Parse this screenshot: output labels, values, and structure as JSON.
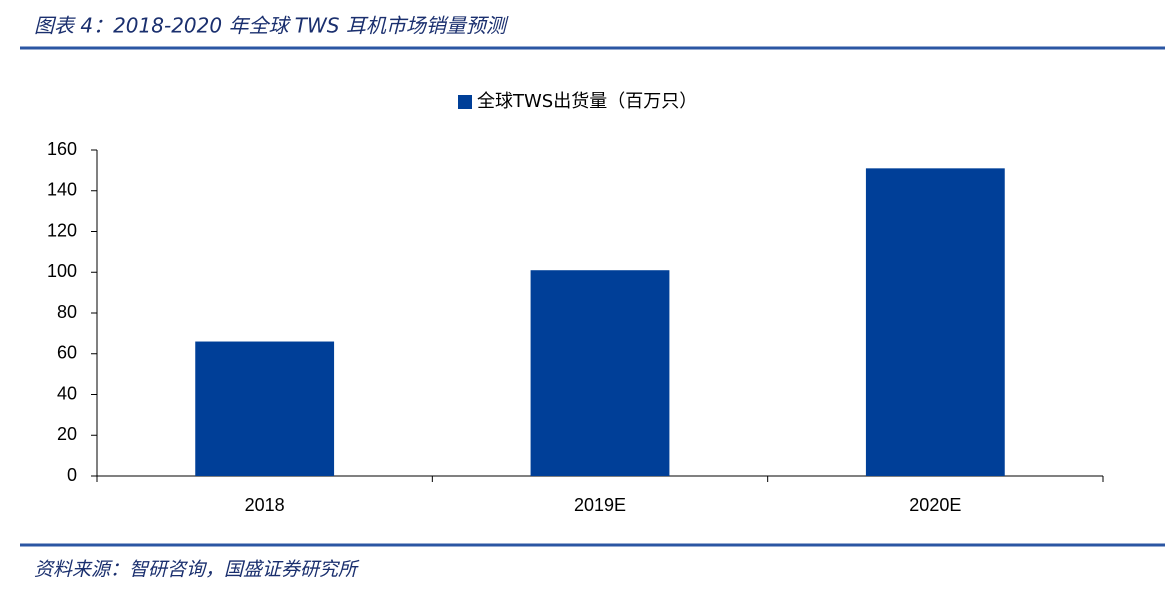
{
  "chart_data": {
    "type": "bar",
    "title": "图表 4：2018-2020 年全球 TWS 耳机市场销量预测",
    "source": "资料来源：智研咨询，国盛证券研究所",
    "categories": [
      "2018",
      "2019E",
      "2020E"
    ],
    "series": [
      {
        "name": "全球TWS出货量（百万只）",
        "color": "#003f98",
        "values": [
          66,
          101,
          151
        ]
      }
    ],
    "ylim": [
      0,
      160
    ],
    "yticks": [
      0,
      20,
      40,
      60,
      80,
      100,
      120,
      140,
      160
    ],
    "legend": "top",
    "grid": false
  }
}
